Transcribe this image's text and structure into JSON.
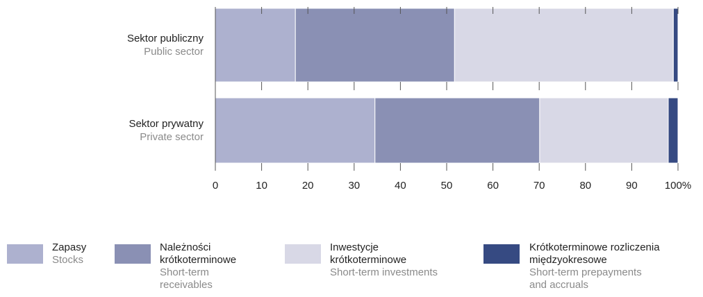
{
  "chart_data": {
    "type": "bar",
    "stacked": true,
    "orientation": "horizontal",
    "categories": [
      "Sektor publiczny",
      "Sektor prywatny"
    ],
    "categories_en": [
      "Public sector",
      "Private sector"
    ],
    "series": [
      {
        "name": "Zapasy",
        "name_en": "Stocks",
        "color": "#adb1cf",
        "values": [
          17.3,
          34.5
        ]
      },
      {
        "name": "Należności krótkoterminowe",
        "name_en": "Short-term receivables",
        "color": "#8a90b4",
        "values": [
          34.4,
          35.6
        ]
      },
      {
        "name": "Inwestycje krótkoterminowe",
        "name_en": "Short-term investments",
        "color": "#d8d8e6",
        "values": [
          47.3,
          27.8
        ]
      },
      {
        "name": "Krótkoterminowe rozliczenia międzyokresowe",
        "name_en": "Short-term prepayments and accruals",
        "color": "#364a82",
        "values": [
          1.0,
          2.1
        ]
      }
    ],
    "xlim": [
      0,
      100
    ],
    "xticks": [
      0,
      10,
      20,
      30,
      40,
      50,
      60,
      70,
      80,
      90,
      {
        "value": 100,
        "label": "100%"
      }
    ]
  }
}
